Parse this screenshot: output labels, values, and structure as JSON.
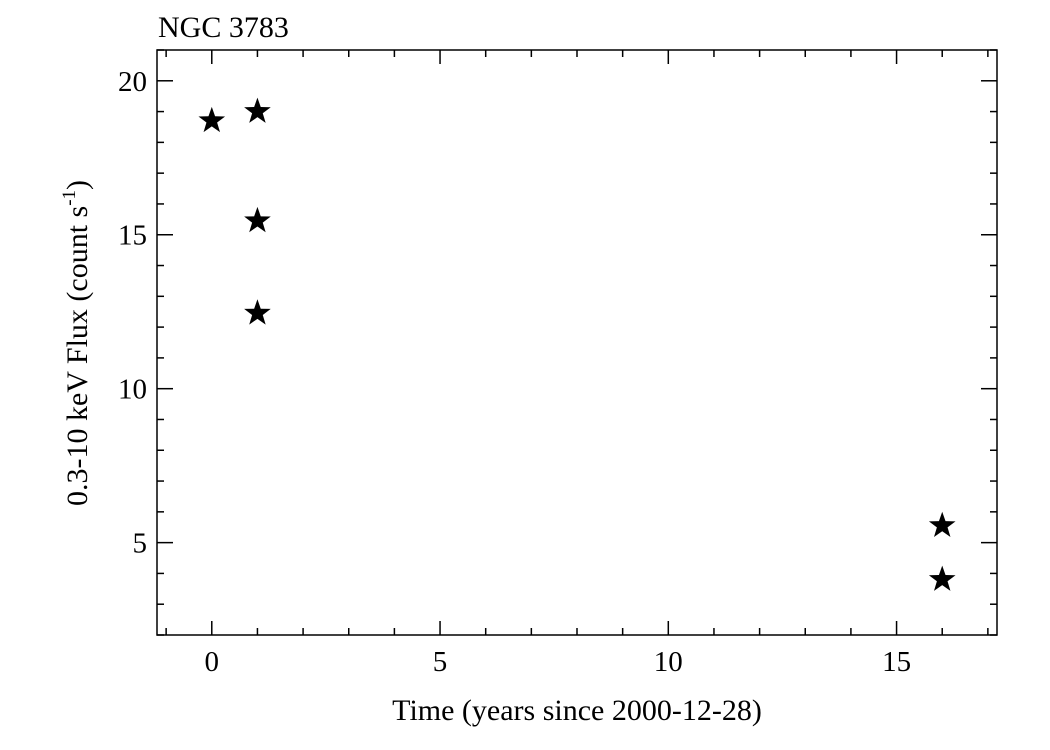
{
  "chart_data": {
    "type": "scatter",
    "title": "NGC 3783",
    "xlabel": "Time (years since 2000-12-28)",
    "ylabel_main": "0.3-10 keV Flux (count s",
    "ylabel_sup": "-1",
    "ylabel_close": ")",
    "xlim": [
      -1.2,
      17.2
    ],
    "ylim": [
      2,
      21
    ],
    "xticks": [
      0,
      5,
      10,
      15
    ],
    "yticks": [
      5,
      10,
      15,
      20
    ],
    "x_minor_step": 1,
    "y_minor_step": 1,
    "grid": false,
    "marker": "star",
    "marker_color": "#000000",
    "series": [
      {
        "points": [
          {
            "x": 0.0,
            "y": 18.7
          },
          {
            "x": 1.0,
            "y": 19.0
          },
          {
            "x": 1.0,
            "y": 15.45
          },
          {
            "x": 1.0,
            "y": 12.45
          },
          {
            "x": 16.0,
            "y": 5.55
          },
          {
            "x": 16.0,
            "y": 3.8
          }
        ]
      }
    ]
  }
}
